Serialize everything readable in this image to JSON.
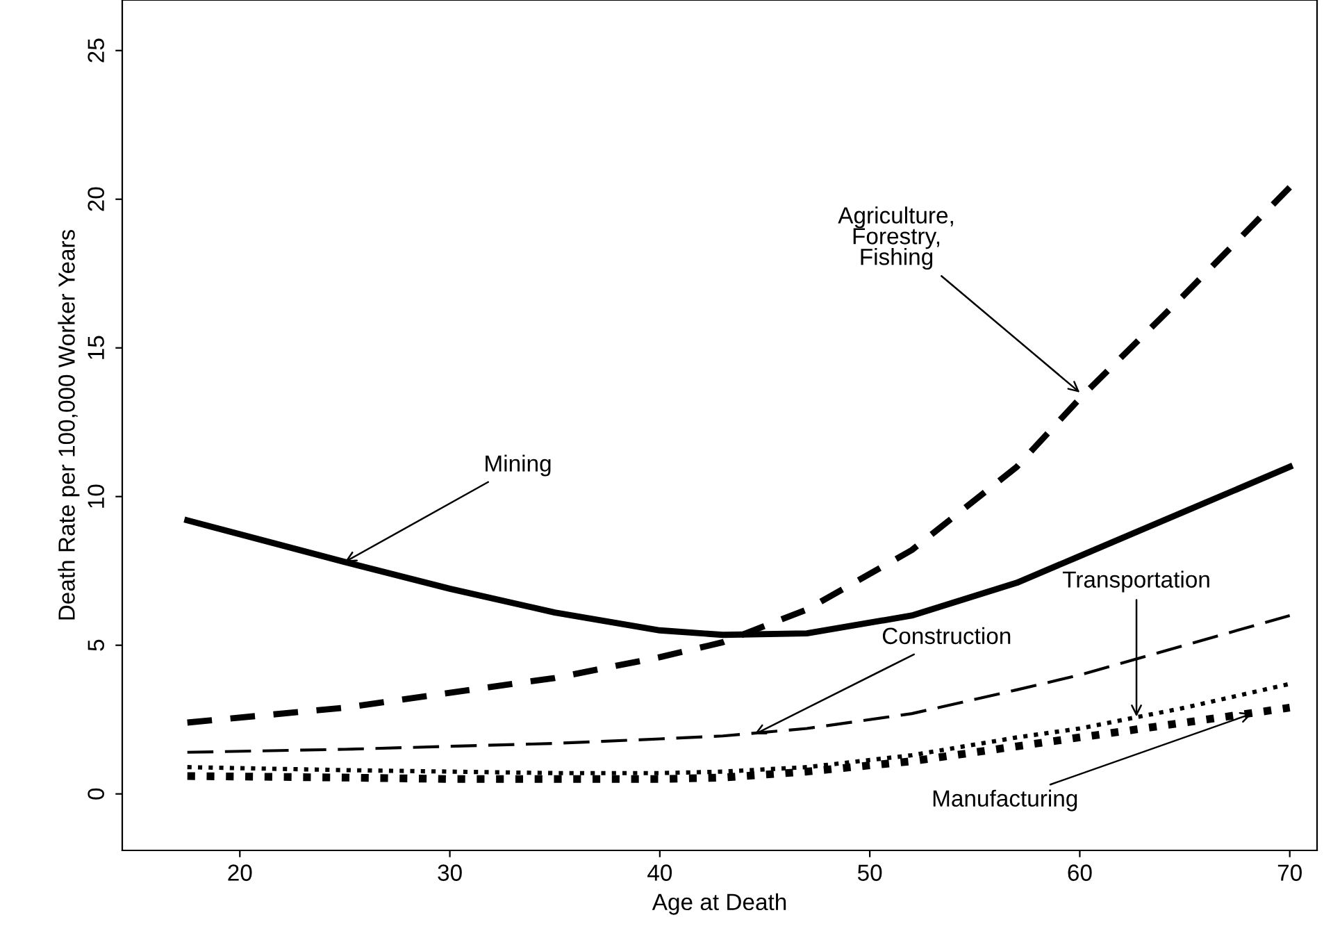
{
  "chart_data": {
    "type": "line",
    "xlabel": "Age at Death",
    "ylabel": "Death Rate per 100,000 Worker Years",
    "xlim": [
      14.4,
      71.3
    ],
    "ylim": [
      -1.9,
      26.7
    ],
    "xticks": [
      20,
      30,
      40,
      50,
      60,
      70
    ],
    "yticks": [
      0,
      5,
      10,
      15,
      20,
      25
    ],
    "grid": false,
    "legend": false,
    "x": [
      17.5,
      25,
      30,
      35,
      40,
      43,
      47,
      52,
      57,
      60,
      65,
      70
    ],
    "series": [
      {
        "color": "#000000",
        "line_style": "solid",
        "values": [
          9.2,
          7.8,
          6.9,
          6.1,
          5.5,
          5.35,
          5.4,
          6.0,
          7.1,
          8.0,
          9.5,
          11.0
        ]
      },
      {
        "color": "#000000",
        "line_style": "dashed",
        "values": [
          2.4,
          2.9,
          3.4,
          3.9,
          4.6,
          5.1,
          6.2,
          8.2,
          11.0,
          13.3,
          16.8,
          20.4
        ]
      },
      {
        "color": "#000000",
        "line_style": "dashed",
        "values": [
          1.4,
          1.5,
          1.6,
          1.7,
          1.85,
          1.95,
          2.2,
          2.7,
          3.5,
          4.0,
          5.0,
          6.0
        ]
      },
      {
        "color": "#000000",
        "line_style": "dotted",
        "values": [
          0.9,
          0.8,
          0.75,
          0.7,
          0.7,
          0.75,
          0.9,
          1.3,
          1.9,
          2.2,
          2.9,
          3.7
        ]
      },
      {
        "color": "#000000",
        "line_style": "dotted",
        "values": [
          0.6,
          0.55,
          0.5,
          0.5,
          0.5,
          0.55,
          0.75,
          1.1,
          1.6,
          1.9,
          2.4,
          2.9
        ]
      }
    ],
    "annotations": [
      {
        "text": "Mining",
        "x": 25,
        "y": 7.8
      },
      {
        "text": "Agriculture,\nForestry,\nFishing",
        "x": 60,
        "y": 13.5
      },
      {
        "text": "Construction",
        "x": 44.5,
        "y": 2.0
      },
      {
        "text": "Transportation",
        "x": 62.7,
        "y": 2.6
      },
      {
        "text": "Manufacturing",
        "x": 68.2,
        "y": 2.7
      }
    ]
  }
}
